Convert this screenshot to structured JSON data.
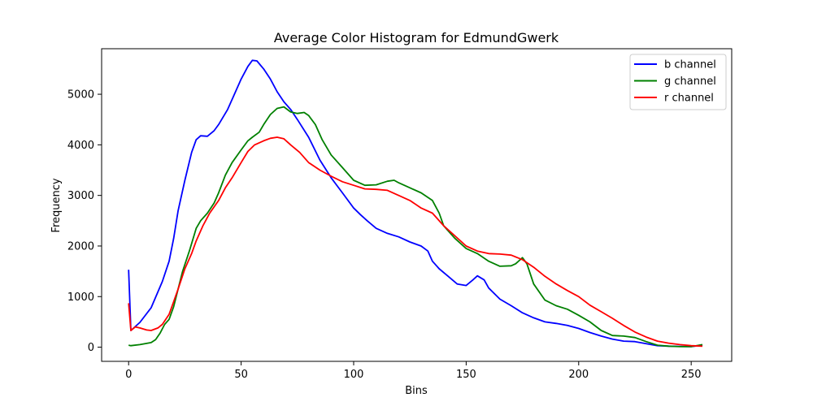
{
  "chart_data": {
    "type": "line",
    "title": "Average Color Histogram for EdmundGwerk",
    "xlabel": "Bins",
    "ylabel": "Frequency",
    "xlim": [
      -12,
      268
    ],
    "ylim": [
      -280,
      5900
    ],
    "xticks": [
      0,
      50,
      100,
      150,
      200,
      250
    ],
    "yticks": [
      0,
      1000,
      2000,
      3000,
      4000,
      5000
    ],
    "grid": false,
    "legend_position": "top-right",
    "series": [
      {
        "name": "b channel",
        "color": "#0000ff",
        "points": [
          [
            0,
            1530
          ],
          [
            1,
            330
          ],
          [
            5,
            490
          ],
          [
            10,
            780
          ],
          [
            15,
            1300
          ],
          [
            18,
            1700
          ],
          [
            20,
            2150
          ],
          [
            22,
            2700
          ],
          [
            25,
            3300
          ],
          [
            28,
            3850
          ],
          [
            30,
            4100
          ],
          [
            32,
            4180
          ],
          [
            35,
            4170
          ],
          [
            38,
            4280
          ],
          [
            40,
            4400
          ],
          [
            44,
            4700
          ],
          [
            47,
            5000
          ],
          [
            50,
            5300
          ],
          [
            53,
            5550
          ],
          [
            55,
            5670
          ],
          [
            57,
            5660
          ],
          [
            60,
            5500
          ],
          [
            63,
            5300
          ],
          [
            66,
            5050
          ],
          [
            69,
            4850
          ],
          [
            72,
            4700
          ],
          [
            75,
            4500
          ],
          [
            80,
            4150
          ],
          [
            85,
            3700
          ],
          [
            90,
            3350
          ],
          [
            95,
            3050
          ],
          [
            100,
            2750
          ],
          [
            103,
            2620
          ],
          [
            106,
            2500
          ],
          [
            110,
            2350
          ],
          [
            115,
            2250
          ],
          [
            120,
            2180
          ],
          [
            125,
            2080
          ],
          [
            130,
            2000
          ],
          [
            133,
            1900
          ],
          [
            135,
            1700
          ],
          [
            138,
            1550
          ],
          [
            142,
            1400
          ],
          [
            146,
            1250
          ],
          [
            150,
            1220
          ],
          [
            153,
            1330
          ],
          [
            155,
            1410
          ],
          [
            158,
            1330
          ],
          [
            160,
            1170
          ],
          [
            165,
            950
          ],
          [
            170,
            820
          ],
          [
            175,
            680
          ],
          [
            180,
            580
          ],
          [
            185,
            500
          ],
          [
            190,
            470
          ],
          [
            195,
            430
          ],
          [
            200,
            370
          ],
          [
            205,
            290
          ],
          [
            210,
            220
          ],
          [
            215,
            160
          ],
          [
            220,
            120
          ],
          [
            225,
            110
          ],
          [
            230,
            70
          ],
          [
            235,
            30
          ],
          [
            240,
            20
          ],
          [
            245,
            15
          ],
          [
            250,
            10
          ],
          [
            255,
            40
          ]
        ]
      },
      {
        "name": "g channel",
        "color": "#008000",
        "points": [
          [
            0,
            40
          ],
          [
            1,
            30
          ],
          [
            5,
            50
          ],
          [
            10,
            90
          ],
          [
            12,
            150
          ],
          [
            14,
            280
          ],
          [
            16,
            450
          ],
          [
            18,
            550
          ],
          [
            20,
            800
          ],
          [
            22,
            1150
          ],
          [
            24,
            1500
          ],
          [
            27,
            1900
          ],
          [
            30,
            2350
          ],
          [
            32,
            2500
          ],
          [
            35,
            2650
          ],
          [
            38,
            2850
          ],
          [
            40,
            3050
          ],
          [
            43,
            3400
          ],
          [
            46,
            3650
          ],
          [
            50,
            3900
          ],
          [
            53,
            4080
          ],
          [
            55,
            4150
          ],
          [
            58,
            4250
          ],
          [
            60,
            4400
          ],
          [
            63,
            4600
          ],
          [
            66,
            4720
          ],
          [
            69,
            4750
          ],
          [
            72,
            4650
          ],
          [
            75,
            4620
          ],
          [
            78,
            4640
          ],
          [
            80,
            4580
          ],
          [
            83,
            4400
          ],
          [
            86,
            4100
          ],
          [
            90,
            3800
          ],
          [
            95,
            3550
          ],
          [
            100,
            3300
          ],
          [
            105,
            3200
          ],
          [
            110,
            3210
          ],
          [
            115,
            3280
          ],
          [
            118,
            3300
          ],
          [
            120,
            3250
          ],
          [
            125,
            3150
          ],
          [
            130,
            3050
          ],
          [
            135,
            2900
          ],
          [
            138,
            2650
          ],
          [
            140,
            2400
          ],
          [
            145,
            2150
          ],
          [
            150,
            1950
          ],
          [
            155,
            1850
          ],
          [
            160,
            1700
          ],
          [
            165,
            1600
          ],
          [
            170,
            1610
          ],
          [
            172,
            1650
          ],
          [
            175,
            1770
          ],
          [
            177,
            1650
          ],
          [
            180,
            1250
          ],
          [
            185,
            930
          ],
          [
            190,
            820
          ],
          [
            195,
            750
          ],
          [
            200,
            630
          ],
          [
            205,
            500
          ],
          [
            210,
            330
          ],
          [
            215,
            230
          ],
          [
            220,
            220
          ],
          [
            225,
            190
          ],
          [
            230,
            110
          ],
          [
            235,
            40
          ],
          [
            240,
            20
          ],
          [
            245,
            10
          ],
          [
            250,
            10
          ],
          [
            255,
            50
          ]
        ]
      },
      {
        "name": "r channel",
        "color": "#ff0000",
        "points": [
          [
            0,
            870
          ],
          [
            1,
            330
          ],
          [
            3,
            400
          ],
          [
            5,
            380
          ],
          [
            8,
            340
          ],
          [
            10,
            330
          ],
          [
            13,
            380
          ],
          [
            15,
            450
          ],
          [
            18,
            650
          ],
          [
            20,
            900
          ],
          [
            22,
            1150
          ],
          [
            25,
            1550
          ],
          [
            28,
            1850
          ],
          [
            30,
            2100
          ],
          [
            33,
            2400
          ],
          [
            36,
            2650
          ],
          [
            40,
            2900
          ],
          [
            43,
            3150
          ],
          [
            46,
            3350
          ],
          [
            50,
            3650
          ],
          [
            53,
            3870
          ],
          [
            56,
            4000
          ],
          [
            60,
            4080
          ],
          [
            63,
            4130
          ],
          [
            66,
            4150
          ],
          [
            69,
            4120
          ],
          [
            72,
            4000
          ],
          [
            76,
            3850
          ],
          [
            80,
            3650
          ],
          [
            85,
            3500
          ],
          [
            90,
            3380
          ],
          [
            95,
            3270
          ],
          [
            100,
            3200
          ],
          [
            105,
            3130
          ],
          [
            110,
            3120
          ],
          [
            115,
            3100
          ],
          [
            120,
            3000
          ],
          [
            125,
            2900
          ],
          [
            130,
            2750
          ],
          [
            135,
            2650
          ],
          [
            140,
            2400
          ],
          [
            145,
            2200
          ],
          [
            150,
            2000
          ],
          [
            155,
            1900
          ],
          [
            160,
            1850
          ],
          [
            165,
            1840
          ],
          [
            170,
            1820
          ],
          [
            175,
            1730
          ],
          [
            180,
            1580
          ],
          [
            185,
            1400
          ],
          [
            190,
            1250
          ],
          [
            195,
            1120
          ],
          [
            200,
            1000
          ],
          [
            205,
            830
          ],
          [
            210,
            700
          ],
          [
            215,
            570
          ],
          [
            220,
            430
          ],
          [
            225,
            300
          ],
          [
            230,
            200
          ],
          [
            235,
            120
          ],
          [
            240,
            80
          ],
          [
            245,
            50
          ],
          [
            250,
            30
          ],
          [
            255,
            20
          ]
        ]
      }
    ]
  }
}
